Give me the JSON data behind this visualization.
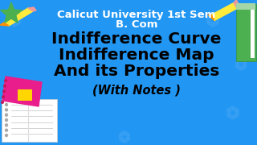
{
  "background_color": "#2196F3",
  "title_line1": "Calicut University 1st Sem",
  "title_line2": "B. Com",
  "main_line1": "Indifference Curve",
  "main_line2": "Indifference Map",
  "main_line3": "And its Properties",
  "sub_line": "(With Notes )",
  "title_color": "#FFFFFF",
  "main_color": "#000000",
  "sub_color": "#000000",
  "title_fontsize": 9.5,
  "subtitle_fontsize": 9.5,
  "main_fontsize": 14.5,
  "sub_fontsize": 10.5,
  "flower_color": "#42A5F5",
  "pencil_yellow": "#FFEB3B",
  "pencil_orange": "#FF8F00",
  "pencil_tip": "#8B6914",
  "pencil_eraser": "#FF8080",
  "star_green": "#4CAF50",
  "star_yellow": "#FFC107",
  "notebook_pink": "#E91E8C",
  "notebook_yellow": "#FFD600",
  "notebook_white": "#FFFFFF",
  "notebook_green": "#4CAF50",
  "notebook_light_green": "#A5D6A7"
}
